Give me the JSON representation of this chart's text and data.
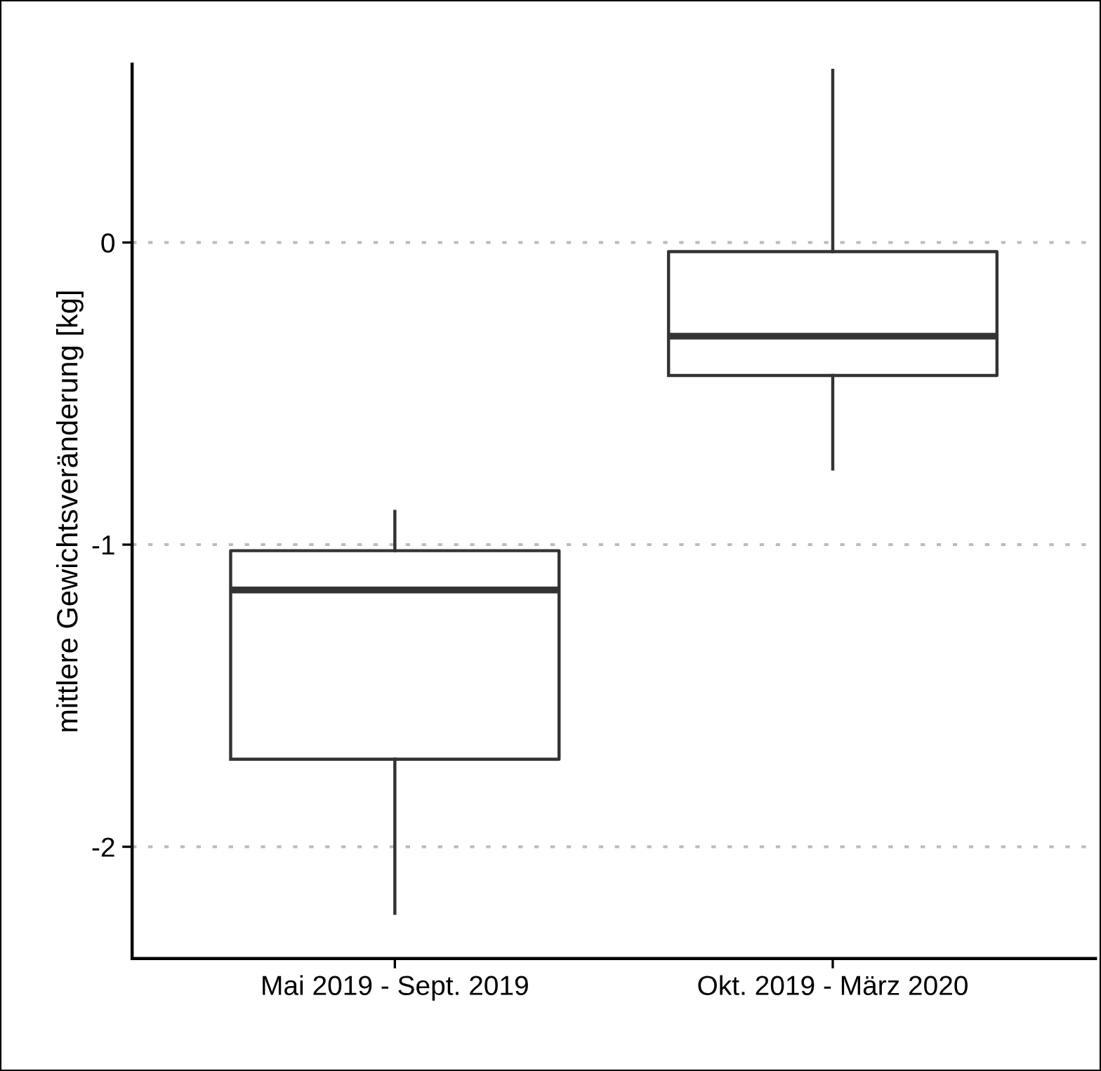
{
  "chart_data": {
    "type": "box",
    "ylabel": "mittlere Gewichtsveränderung [kg]",
    "categories": [
      "Mai 2019 - Sept. 2019",
      "Okt. 2019 - März 2020"
    ],
    "boxes": [
      {
        "low": -2.22,
        "q1": -1.71,
        "median": -1.15,
        "q3": -1.02,
        "high": -0.89
      },
      {
        "low": -0.75,
        "q1": -0.44,
        "median": -0.31,
        "q3": -0.03,
        "high": 0.57
      }
    ],
    "ylim": [
      -2.37,
      0.59
    ],
    "yticks": [
      -2,
      -1,
      0
    ],
    "grid": "y",
    "color": "#333333"
  }
}
